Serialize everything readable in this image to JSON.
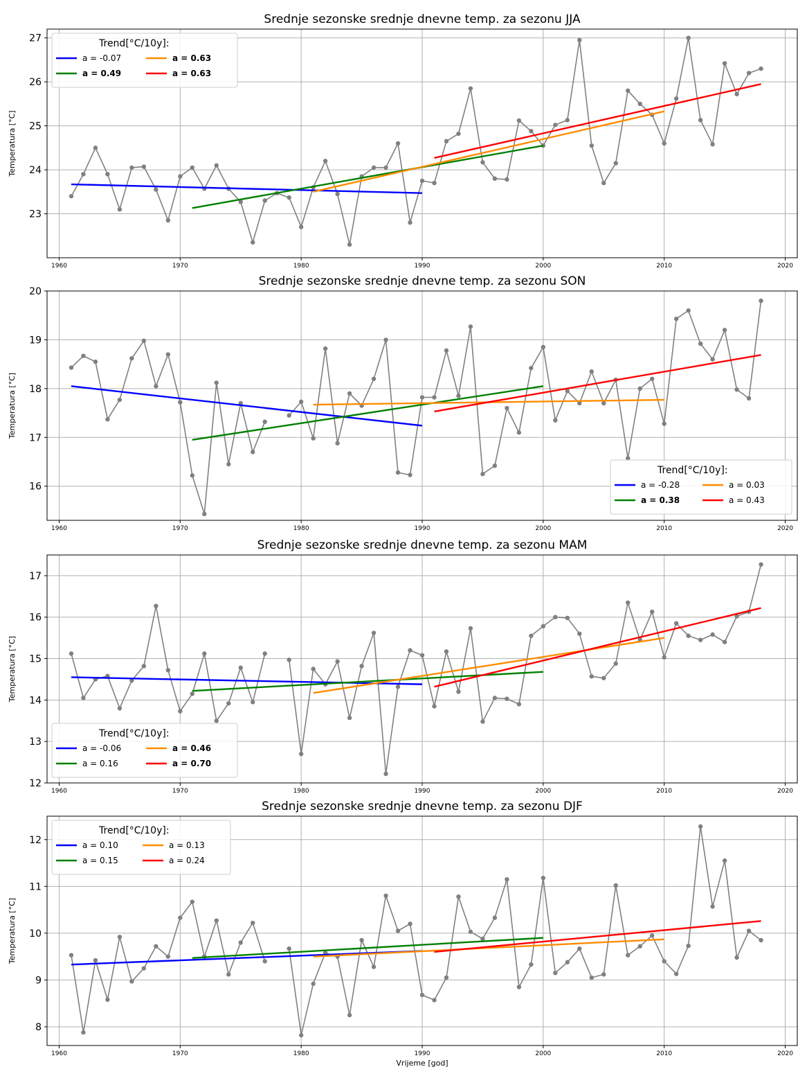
{
  "chart_data": [
    {
      "type": "line",
      "title": "Srednje sezonske srednje dnevne temp. za sezonu JJA",
      "xlabel": "",
      "ylabel": "Temperatura [°C]",
      "xlim": [
        1959,
        2021
      ],
      "ylim": [
        22.0,
        27.2
      ],
      "yticks": [
        23,
        24,
        25,
        26,
        27
      ],
      "xticks": [
        1960,
        1970,
        1980,
        1990,
        2000,
        2010,
        2020
      ],
      "grid": true,
      "legend": {
        "title": "Trend[°C/10y]:",
        "placement": "top-left",
        "entries": [
          {
            "label": "a = -0.07",
            "color": "#0000ff",
            "bold": false
          },
          {
            "label": "a = 0.63",
            "color": "#ff8c00",
            "bold": true
          },
          {
            "label": "a = 0.49",
            "color": "#008000",
            "bold": true
          },
          {
            "label": "a = 0.63",
            "color": "#ff0000",
            "bold": true
          }
        ]
      },
      "series": [
        {
          "color": "#808080",
          "x": [
            1961,
            1962,
            1963,
            1964,
            1965,
            1966,
            1967,
            1968,
            1969,
            1970,
            1971,
            1972,
            1973,
            1974,
            1975,
            1976,
            1977,
            1978,
            1979,
            1980,
            1981,
            1982,
            1983,
            1984,
            1985,
            1986,
            1987,
            1988,
            1989,
            1990,
            1991,
            1992,
            1993,
            1994,
            1995,
            1996,
            1997,
            1998,
            1999,
            2000,
            2001,
            2002,
            2003,
            2004,
            2005,
            2006,
            2007,
            2008,
            2009,
            2010,
            2011,
            2012,
            2013,
            2014,
            2015,
            2016,
            2017,
            2018
          ],
          "y": [
            23.4,
            23.9,
            24.5,
            23.9,
            23.1,
            24.05,
            24.07,
            23.55,
            22.85,
            23.85,
            24.05,
            23.57,
            24.1,
            23.57,
            23.27,
            22.35,
            23.3,
            23.47,
            23.37,
            22.7,
            23.6,
            24.2,
            23.45,
            22.3,
            23.85,
            24.05,
            24.05,
            24.6,
            22.8,
            23.75,
            23.7,
            24.65,
            24.82,
            25.85,
            24.17,
            23.8,
            23.78,
            25.12,
            24.88,
            24.55,
            25.02,
            25.13,
            26.95,
            24.55,
            23.7,
            24.15,
            25.8,
            25.5,
            25.25,
            24.6,
            25.62,
            27.0,
            25.13,
            24.58,
            26.42,
            25.72,
            26.2,
            26.3
          ]
        }
      ],
      "trends": [
        {
          "color": "#0000ff",
          "x": [
            1961,
            1990
          ],
          "y": [
            23.67,
            23.47
          ]
        },
        {
          "color": "#008000",
          "x": [
            1971,
            2000
          ],
          "y": [
            23.13,
            24.55
          ]
        },
        {
          "color": "#ff8c00",
          "x": [
            1981,
            2010
          ],
          "y": [
            23.5,
            25.33
          ]
        },
        {
          "color": "#ff0000",
          "x": [
            1991,
            2018
          ],
          "y": [
            24.27,
            25.95
          ]
        }
      ]
    },
    {
      "type": "line",
      "title": "Srednje sezonske srednje dnevne temp. za sezonu SON",
      "xlabel": "",
      "ylabel": "Temperatura [°C]",
      "xlim": [
        1959,
        2021
      ],
      "ylim": [
        15.3,
        20.0
      ],
      "yticks": [
        16,
        17,
        18,
        19,
        20
      ],
      "xticks": [
        1960,
        1970,
        1980,
        1990,
        2000,
        2010,
        2020
      ],
      "grid": true,
      "legend": {
        "title": "Trend[°C/10y]:",
        "placement": "bottom-right",
        "entries": [
          {
            "label": "a = -0.28",
            "color": "#0000ff",
            "bold": false
          },
          {
            "label": "a = 0.03",
            "color": "#ff8c00",
            "bold": false
          },
          {
            "label": "a = 0.38",
            "color": "#008000",
            "bold": true
          },
          {
            "label": "a = 0.43",
            "color": "#ff0000",
            "bold": false
          }
        ]
      },
      "series": [
        {
          "color": "#808080",
          "x": [
            1961,
            1962,
            1963,
            1964,
            1965,
            1966,
            1967,
            1968,
            1969,
            1970,
            1971,
            1972,
            1973,
            1974,
            1975,
            1976,
            1977,
            null,
            1979,
            1980,
            1981,
            1982,
            1983,
            1984,
            1985,
            1986,
            1987,
            1988,
            1989,
            1990,
            1991,
            1992,
            1993,
            1994,
            1995,
            1996,
            1997,
            1998,
            1999,
            2000,
            2001,
            2002,
            2003,
            2004,
            2005,
            2006,
            2007,
            2008,
            2009,
            2010,
            2011,
            2012,
            2013,
            2014,
            2015,
            2016,
            2017,
            2018
          ],
          "y": [
            18.43,
            18.67,
            18.55,
            17.37,
            17.77,
            18.62,
            18.98,
            18.05,
            18.7,
            17.72,
            16.22,
            15.43,
            18.12,
            16.45,
            17.7,
            16.7,
            17.32,
            null,
            17.45,
            17.73,
            16.98,
            18.82,
            16.88,
            17.9,
            17.65,
            18.2,
            19.0,
            16.28,
            16.23,
            17.82,
            17.82,
            18.78,
            17.85,
            19.27,
            16.25,
            16.42,
            17.6,
            17.1,
            18.42,
            18.85,
            17.35,
            17.95,
            17.7,
            18.35,
            17.7,
            18.18,
            16.57,
            18.0,
            18.2,
            17.28,
            19.43,
            19.6,
            18.92,
            18.6,
            19.2,
            17.98,
            17.8,
            19.8
          ]
        }
      ],
      "trends": [
        {
          "color": "#0000ff",
          "x": [
            1961,
            1990
          ],
          "y": [
            18.05,
            17.24
          ]
        },
        {
          "color": "#008000",
          "x": [
            1971,
            2000
          ],
          "y": [
            16.95,
            18.05
          ]
        },
        {
          "color": "#ff8c00",
          "x": [
            1981,
            2010
          ],
          "y": [
            17.67,
            17.77
          ]
        },
        {
          "color": "#ff0000",
          "x": [
            1991,
            2018
          ],
          "y": [
            17.53,
            18.69
          ]
        }
      ]
    },
    {
      "type": "line",
      "title": "Srednje sezonske srednje dnevne temp. za sezonu MAM",
      "xlabel": "",
      "ylabel": "Temperatura [°C]",
      "xlim": [
        1959,
        2021
      ],
      "ylim": [
        12.0,
        17.5
      ],
      "yticks": [
        12,
        13,
        14,
        15,
        16,
        17
      ],
      "xticks": [
        1960,
        1970,
        1980,
        1990,
        2000,
        2010,
        2020
      ],
      "grid": true,
      "legend": {
        "title": "Trend[°C/10y]:",
        "placement": "bottom-left",
        "entries": [
          {
            "label": "a = -0.06",
            "color": "#0000ff",
            "bold": false
          },
          {
            "label": "a = 0.46",
            "color": "#ff8c00",
            "bold": true
          },
          {
            "label": "a = 0.16",
            "color": "#008000",
            "bold": false
          },
          {
            "label": "a = 0.70",
            "color": "#ff0000",
            "bold": true
          }
        ]
      },
      "series": [
        {
          "color": "#808080",
          "x": [
            1961,
            1962,
            1963,
            1964,
            1965,
            1966,
            1967,
            1968,
            1969,
            1970,
            1971,
            1972,
            1973,
            1974,
            1975,
            1976,
            1977,
            null,
            1979,
            1980,
            1981,
            1982,
            1983,
            1984,
            1985,
            1986,
            1987,
            1988,
            1989,
            1990,
            1991,
            1992,
            1993,
            1994,
            1995,
            1996,
            1997,
            1998,
            1999,
            2000,
            2001,
            2002,
            2003,
            2004,
            2005,
            2006,
            2007,
            2008,
            2009,
            2010,
            2011,
            2012,
            2013,
            2014,
            2015,
            2016,
            2017,
            2018
          ],
          "y": [
            15.12,
            14.05,
            14.5,
            14.58,
            13.8,
            14.47,
            14.82,
            16.27,
            14.72,
            13.73,
            14.15,
            15.12,
            13.5,
            13.92,
            14.78,
            13.95,
            15.12,
            null,
            14.97,
            12.7,
            14.75,
            14.38,
            14.93,
            13.57,
            14.82,
            15.62,
            12.22,
            14.32,
            15.2,
            15.08,
            13.85,
            15.17,
            14.2,
            15.73,
            13.48,
            14.05,
            14.03,
            13.9,
            15.55,
            15.78,
            16.0,
            15.98,
            15.6,
            14.57,
            14.53,
            14.88,
            16.35,
            15.45,
            16.13,
            15.03,
            15.85,
            15.55,
            15.45,
            15.58,
            15.4,
            16.02,
            16.13,
            17.27
          ]
        }
      ],
      "trends": [
        {
          "color": "#0000ff",
          "x": [
            1961,
            1990
          ],
          "y": [
            14.55,
            14.38
          ]
        },
        {
          "color": "#008000",
          "x": [
            1971,
            2000
          ],
          "y": [
            14.22,
            14.68
          ]
        },
        {
          "color": "#ff8c00",
          "x": [
            1981,
            2010
          ],
          "y": [
            14.17,
            15.5
          ]
        },
        {
          "color": "#ff0000",
          "x": [
            1991,
            2018
          ],
          "y": [
            14.32,
            16.22
          ]
        }
      ]
    },
    {
      "type": "line",
      "title": "Srednje sezonske srednje dnevne temp. za sezonu DJF",
      "xlabel": "Vrijeme [god]",
      "ylabel": "Temperatura [°C]",
      "xlim": [
        1959,
        2021
      ],
      "ylim": [
        7.6,
        12.5
      ],
      "yticks": [
        8,
        9,
        10,
        11,
        12
      ],
      "xticks": [
        1960,
        1970,
        1980,
        1990,
        2000,
        2010,
        2020
      ],
      "grid": true,
      "legend": {
        "title": "Trend[°C/10y]:",
        "placement": "top-left",
        "entries": [
          {
            "label": "a = 0.10",
            "color": "#0000ff",
            "bold": false
          },
          {
            "label": "a = 0.13",
            "color": "#ff8c00",
            "bold": false
          },
          {
            "label": "a = 0.15",
            "color": "#008000",
            "bold": false
          },
          {
            "label": "a = 0.24",
            "color": "#ff0000",
            "bold": false
          }
        ]
      },
      "series": [
        {
          "color": "#808080",
          "x": [
            1961,
            1962,
            1963,
            1964,
            1965,
            1966,
            1967,
            1968,
            1969,
            1970,
            1971,
            1972,
            1973,
            1974,
            1975,
            1976,
            1977,
            null,
            1979,
            1980,
            1981,
            1982,
            1983,
            1984,
            1985,
            1986,
            1987,
            1988,
            1989,
            1990,
            1991,
            1992,
            1993,
            1994,
            1995,
            1996,
            1997,
            1998,
            1999,
            2000,
            2001,
            2002,
            2003,
            2004,
            2005,
            2006,
            2007,
            2008,
            2009,
            2010,
            2011,
            2012,
            2013,
            2014,
            2015,
            2016,
            2017,
            2018
          ],
          "y": [
            9.53,
            7.88,
            9.42,
            8.58,
            9.92,
            8.97,
            9.25,
            9.72,
            9.5,
            10.33,
            10.67,
            9.5,
            10.27,
            9.12,
            9.8,
            10.22,
            9.4,
            null,
            9.67,
            7.82,
            8.92,
            9.58,
            9.5,
            8.25,
            9.85,
            9.28,
            10.8,
            10.05,
            10.2,
            8.68,
            8.57,
            9.05,
            10.78,
            10.03,
            9.88,
            10.33,
            11.15,
            8.85,
            9.33,
            11.18,
            9.15,
            9.38,
            9.67,
            9.05,
            9.12,
            11.02,
            9.53,
            9.72,
            9.95,
            9.4,
            9.13,
            9.73,
            12.28,
            10.57,
            11.55,
            9.48,
            10.05,
            9.85
          ]
        }
      ],
      "trends": [
        {
          "color": "#0000ff",
          "x": [
            1961,
            1990
          ],
          "y": [
            9.33,
            9.62
          ]
        },
        {
          "color": "#008000",
          "x": [
            1971,
            2000
          ],
          "y": [
            9.47,
            9.9
          ]
        },
        {
          "color": "#ff8c00",
          "x": [
            1981,
            2010
          ],
          "y": [
            9.5,
            9.87
          ]
        },
        {
          "color": "#ff0000",
          "x": [
            1991,
            2018
          ],
          "y": [
            9.6,
            10.26
          ]
        }
      ]
    }
  ]
}
